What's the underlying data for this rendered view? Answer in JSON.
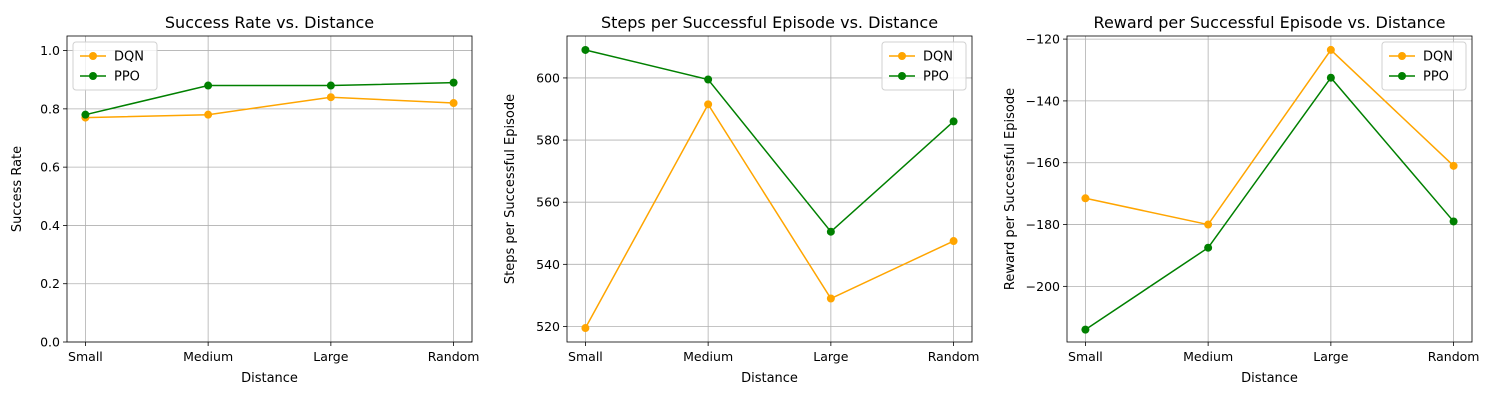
{
  "chart_data": [
    {
      "type": "line",
      "title": "Success Rate vs. Distance",
      "xlabel": "Distance",
      "ylabel": "Success Rate",
      "categories": [
        "Small",
        "Medium",
        "Large",
        "Random"
      ],
      "ylim": [
        0,
        1.05
      ],
      "yticks": [
        0.0,
        0.2,
        0.4,
        0.6,
        0.8,
        1.0
      ],
      "ytick_labels": [
        "0.0",
        "0.2",
        "0.4",
        "0.6",
        "0.8",
        "1.0"
      ],
      "grid": true,
      "legend": "upper-left",
      "series": [
        {
          "name": "DQN",
          "color": "#FFA500",
          "values": [
            0.77,
            0.78,
            0.84,
            0.82
          ]
        },
        {
          "name": "PPO",
          "color": "#008000",
          "values": [
            0.78,
            0.88,
            0.88,
            0.89
          ]
        }
      ]
    },
    {
      "type": "line",
      "title": "Steps per Successful Episode vs. Distance",
      "xlabel": "Distance",
      "ylabel": "Steps per Successful Episode",
      "categories": [
        "Small",
        "Medium",
        "Large",
        "Random"
      ],
      "ylim": [
        515,
        613.5
      ],
      "yticks": [
        520,
        540,
        560,
        580,
        600
      ],
      "ytick_labels": [
        "520",
        "540",
        "560",
        "580",
        "600"
      ],
      "grid": true,
      "legend": "upper-right",
      "series": [
        {
          "name": "DQN",
          "color": "#FFA500",
          "values": [
            519.5,
            591.5,
            529,
            547.5
          ]
        },
        {
          "name": "PPO",
          "color": "#008000",
          "values": [
            609,
            599.5,
            550.5,
            586
          ]
        }
      ]
    },
    {
      "type": "line",
      "title": "Reward per Successful Episode vs. Distance",
      "xlabel": "Distance",
      "ylabel": "Reward per Successful Episode",
      "categories": [
        "Small",
        "Medium",
        "Large",
        "Random"
      ],
      "ylim": [
        -218,
        -119
      ],
      "yticks": [
        -200,
        -180,
        -160,
        -140,
        -120
      ],
      "ytick_labels": [
        "−200",
        "−180",
        "−160",
        "−140",
        "−120"
      ],
      "grid": true,
      "legend": "upper-right",
      "series": [
        {
          "name": "DQN",
          "color": "#FFA500",
          "values": [
            -171.5,
            -180,
            -123.5,
            -161
          ]
        },
        {
          "name": "PPO",
          "color": "#008000",
          "values": [
            -214,
            -187.5,
            -132.5,
            -179
          ]
        }
      ]
    }
  ]
}
